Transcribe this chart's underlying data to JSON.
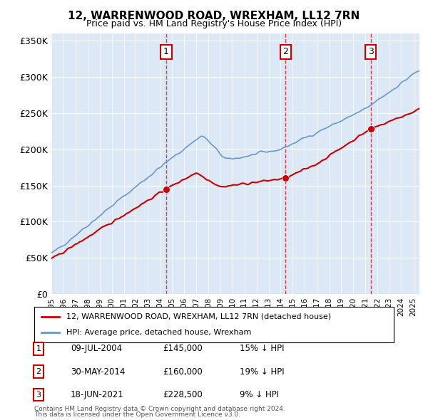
{
  "title": "12, WARRENWOOD ROAD, WREXHAM, LL12 7RN",
  "subtitle": "Price paid vs. HM Land Registry's House Price Index (HPI)",
  "ylabel_ticks": [
    "£0",
    "£50K",
    "£100K",
    "£150K",
    "£200K",
    "£250K",
    "£300K",
    "£350K"
  ],
  "ytick_vals": [
    0,
    50000,
    100000,
    150000,
    200000,
    250000,
    300000,
    350000
  ],
  "ylim": [
    0,
    360000
  ],
  "xlim_start": 1995.0,
  "xlim_end": 2025.5,
  "sale_points": [
    {
      "label": "1",
      "date": "09-JUL-2004",
      "year": 2004.52,
      "price": 145000,
      "pct": "15%",
      "dir": "↓"
    },
    {
      "label": "2",
      "date": "30-MAY-2014",
      "year": 2014.41,
      "price": 160000,
      "pct": "19%",
      "dir": "↓"
    },
    {
      "label": "3",
      "date": "18-JUN-2021",
      "year": 2021.46,
      "price": 228500,
      "pct": "9%",
      "dir": "↓"
    }
  ],
  "line_color_property": "#cc0000",
  "line_color_hpi": "#6699cc",
  "legend_label_property": "12, WARRENWOOD ROAD, WREXHAM, LL12 7RN (detached house)",
  "legend_label_hpi": "HPI: Average price, detached house, Wrexham",
  "footer1": "Contains HM Land Registry data © Crown copyright and database right 2024.",
  "footer2": "This data is licensed under the Open Government Licence v3.0.",
  "background_color": "#f0f4f8",
  "plot_bg_color": "#dce8f5",
  "grid_color": "#ffffff",
  "dashed_line_color": "#cc0000"
}
